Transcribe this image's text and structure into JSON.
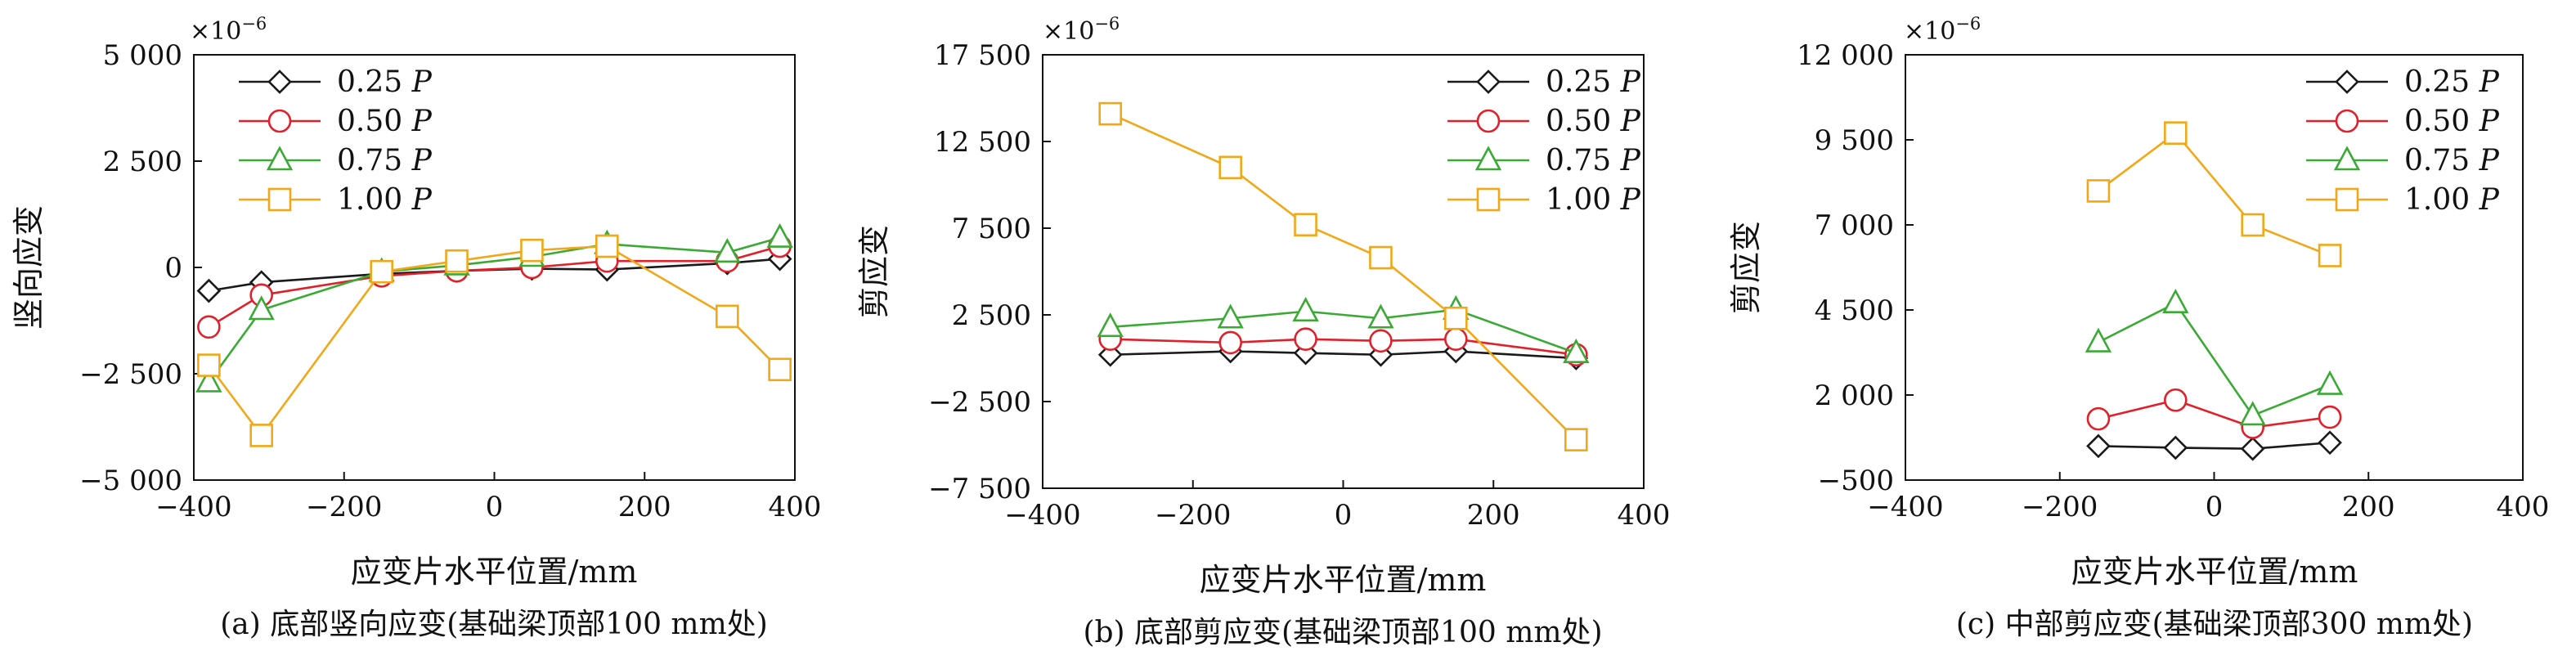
{
  "figure": {
    "legend_labels": [
      "0.25",
      "0.50",
      "0.75",
      "1.00"
    ],
    "legend_var": "P",
    "multiplier": "×10",
    "multiplier_exp": "−6",
    "colors": {
      "0.25": "#1a1a1a",
      "0.50": "#e0202a",
      "0.75": "#3aaa35",
      "1.00": "#f0a818"
    },
    "markers": {
      "0.25": "diamond",
      "0.50": "circle",
      "0.75": "triangle",
      "1.00": "square"
    }
  },
  "chart_data": [
    {
      "type": "line",
      "caption": "(a) 底部竖向应变(基础梁顶部100 mm处)",
      "xlabel": "应变片水平位置/mm",
      "ylabel": "竖向应变",
      "xlim": [
        -400,
        400
      ],
      "ylim": [
        -5000,
        5000
      ],
      "xticks": [
        -400,
        -200,
        0,
        200,
        400
      ],
      "xtick_labels": [
        "−400",
        "−200",
        "0",
        "200",
        "400"
      ],
      "yticks": [
        -5000,
        -2500,
        0,
        2500,
        5000
      ],
      "ytick_labels": [
        "−5 000",
        "−2 500",
        "0",
        "2 500",
        "5 000"
      ],
      "legend_position": "top-left",
      "series": [
        {
          "name": "0.25P",
          "x": [
            -380,
            -310,
            -150,
            -50,
            50,
            150,
            310,
            380
          ],
          "y": [
            -550,
            -350,
            -150,
            -80,
            -30,
            -50,
            100,
            200
          ]
        },
        {
          "name": "0.50P",
          "x": [
            -380,
            -310,
            -150,
            -50,
            50,
            150,
            310,
            380
          ],
          "y": [
            -1400,
            -650,
            -200,
            -80,
            0,
            150,
            150,
            500
          ]
        },
        {
          "name": "0.75P",
          "x": [
            -380,
            -310,
            -150,
            -50,
            50,
            150,
            310,
            380
          ],
          "y": [
            -2700,
            -1000,
            -100,
            50,
            250,
            550,
            350,
            700
          ]
        },
        {
          "name": "1.00P",
          "x": [
            -380,
            -310,
            -150,
            -50,
            50,
            150,
            310,
            380
          ],
          "y": [
            -2300,
            -3950,
            -100,
            150,
            400,
            500,
            -1150,
            -2400
          ]
        }
      ]
    },
    {
      "type": "line",
      "caption": "(b) 底部剪应变(基础梁顶部100 mm处)",
      "xlabel": "应变片水平位置/mm",
      "ylabel": "剪应变",
      "xlim": [
        -400,
        400
      ],
      "ylim": [
        -7500,
        17500
      ],
      "xticks": [
        -400,
        -200,
        0,
        200,
        400
      ],
      "xtick_labels": [
        "−400",
        "−200",
        "0",
        "200",
        "400"
      ],
      "yticks": [
        -7500,
        -2500,
        2500,
        7500,
        12500,
        17500
      ],
      "ytick_labels": [
        "−7 500",
        "−2 500",
        "2 500",
        "7 500",
        "12 500",
        "17 500"
      ],
      "legend_position": "top-right",
      "series": [
        {
          "name": "0.25P",
          "x": [
            -310,
            -150,
            -50,
            50,
            150,
            310
          ],
          "y": [
            200,
            400,
            300,
            200,
            400,
            0
          ]
        },
        {
          "name": "0.50P",
          "x": [
            -310,
            -150,
            -50,
            50,
            150,
            310
          ],
          "y": [
            1100,
            900,
            1100,
            1000,
            1100,
            200
          ]
        },
        {
          "name": "0.75P",
          "x": [
            -310,
            -150,
            -50,
            50,
            150,
            310
          ],
          "y": [
            1800,
            2300,
            2700,
            2300,
            2800,
            300
          ]
        },
        {
          "name": "1.00P",
          "x": [
            -310,
            -150,
            -50,
            50,
            150,
            310
          ],
          "y": [
            14100,
            11000,
            7700,
            5800,
            2300,
            -4700
          ]
        }
      ]
    },
    {
      "type": "line",
      "caption": "(c) 中部剪应变(基础梁顶部300 mm处)",
      "xlabel": "应变片水平位置/mm",
      "ylabel": "剪应变",
      "xlim": [
        -400,
        400
      ],
      "ylim": [
        -500,
        12000
      ],
      "xticks": [
        -400,
        -200,
        0,
        200,
        400
      ],
      "xtick_labels": [
        "−400",
        "−200",
        "0",
        "200",
        "400"
      ],
      "yticks": [
        -500,
        2000,
        4500,
        7000,
        9500,
        12000
      ],
      "ytick_labels": [
        "−500",
        "2 000",
        "4 500",
        "7 000",
        "9 500",
        "12 000"
      ],
      "legend_position": "top-right",
      "series": [
        {
          "name": "0.25P",
          "x": [
            -150,
            -50,
            50,
            150
          ],
          "y": [
            500,
            450,
            420,
            600
          ]
        },
        {
          "name": "0.50P",
          "x": [
            -150,
            -50,
            50,
            150
          ],
          "y": [
            1300,
            1850,
            1050,
            1350
          ]
        },
        {
          "name": "0.75P",
          "x": [
            -150,
            -50,
            50,
            150
          ],
          "y": [
            3550,
            4700,
            1400,
            2300
          ]
        },
        {
          "name": "1.00P",
          "x": [
            -150,
            -50,
            50,
            150
          ],
          "y": [
            8000,
            9700,
            7000,
            6100
          ]
        }
      ]
    }
  ]
}
